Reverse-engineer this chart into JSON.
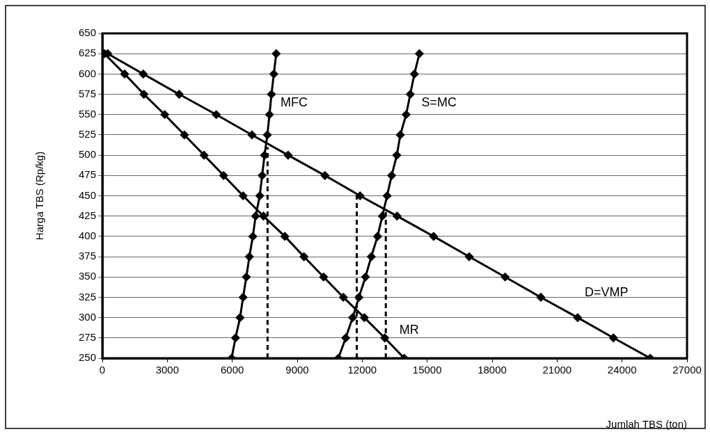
{
  "chart_data": {
    "type": "line",
    "xlabel": "Jumlah TBS (ton)",
    "ylabel": "Harga TBS (Rp/kg)",
    "xlim": [
      0,
      27000
    ],
    "xticks": [
      0,
      3000,
      6000,
      9000,
      12000,
      15000,
      18000,
      21000,
      24000,
      27000
    ],
    "ylim": [
      250,
      650
    ],
    "yticks": [
      250,
      275,
      300,
      325,
      350,
      375,
      400,
      425,
      450,
      475,
      500,
      525,
      550,
      575,
      600,
      625,
      650
    ],
    "grid": "y",
    "legend": false,
    "marker": "diamond",
    "line_style": "solid",
    "series": [
      {
        "name": "D=VMP",
        "color": "#000000",
        "x": [
          250,
          1890,
          3550,
          5260,
          6910,
          8580,
          10280,
          11900,
          13610,
          15300,
          16940,
          18600,
          20250,
          21950,
          23600,
          25300
        ],
        "values": [
          625,
          600,
          575,
          550,
          525,
          500,
          475,
          450,
          425,
          400,
          375,
          350,
          325,
          300,
          275,
          250
        ]
      },
      {
        "name": "MR",
        "color": "#000000",
        "x": [
          100,
          1030,
          1920,
          2880,
          3790,
          4700,
          5600,
          6500,
          7440,
          8430,
          9310,
          10220,
          11130,
          12100,
          13040,
          13940
        ],
        "values": [
          625,
          600,
          575,
          550,
          525,
          500,
          475,
          450,
          425,
          400,
          375,
          350,
          325,
          300,
          275,
          250
        ]
      },
      {
        "name": "MFC",
        "color": "#000000",
        "x": [
          8030,
          7920,
          7810,
          7720,
          7620,
          7490,
          7380,
          7270,
          7080,
          6950,
          6790,
          6650,
          6500,
          6360,
          6150,
          5970
        ],
        "values": [
          625,
          600,
          575,
          550,
          525,
          500,
          475,
          450,
          425,
          400,
          375,
          350,
          325,
          300,
          275,
          250
        ]
      },
      {
        "name": "S=MC",
        "color": "#000000",
        "x": [
          14640,
          14410,
          14220,
          14030,
          13760,
          13600,
          13360,
          13150,
          12930,
          12710,
          12420,
          12150,
          11850,
          11560,
          11240,
          10900
        ],
        "values": [
          625,
          600,
          575,
          550,
          525,
          500,
          475,
          450,
          425,
          400,
          375,
          350,
          325,
          300,
          275,
          250
        ]
      },
      {
        "color": "#000000",
        "marker": "none",
        "line_style": "dashed",
        "x": [
          7630,
          7630
        ],
        "values": [
          250,
          510
        ]
      },
      {
        "color": "#000000",
        "marker": "none",
        "line_style": "dashed",
        "x": [
          11750,
          11750
        ],
        "values": [
          250,
          450
        ]
      },
      {
        "color": "#000000",
        "marker": "none",
        "line_style": "dashed",
        "x": [
          13090,
          13090
        ],
        "values": [
          250,
          430
        ]
      }
    ]
  }
}
